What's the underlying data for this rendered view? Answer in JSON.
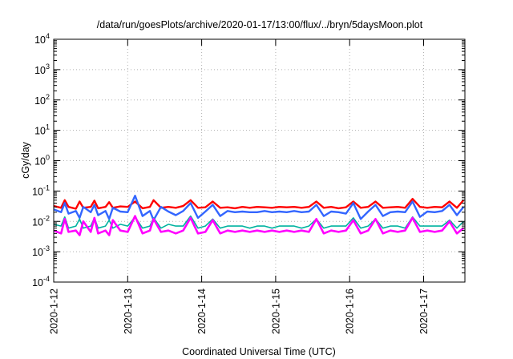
{
  "chart_data": {
    "type": "line",
    "title": "/data/run/goesPlots/archive/2020-01-17/13:00/flux/../bryn/5daysMoon.plot",
    "xlabel": "Coordinated Universal Time (UTC)",
    "ylabel": "cGy/day",
    "yscale": "log",
    "ylim": [
      0.0001,
      10000
    ],
    "xlim": [
      "2020-01-12 00:00",
      "2020-01-17 13:00"
    ],
    "grid": true,
    "y_ticks": [
      {
        "mantissa": "10",
        "exp": "-4"
      },
      {
        "mantissa": "10",
        "exp": "-3"
      },
      {
        "mantissa": "10",
        "exp": "-2"
      },
      {
        "mantissa": "10",
        "exp": "-1"
      },
      {
        "mantissa": "10",
        "exp": "0"
      },
      {
        "mantissa": "10",
        "exp": "1"
      },
      {
        "mantissa": "10",
        "exp": "2"
      },
      {
        "mantissa": "10",
        "exp": "3"
      },
      {
        "mantissa": "10",
        "exp": "4"
      }
    ],
    "x_ticks": [
      "2020-1-12",
      "2020-1-13",
      "2020-1-14",
      "2020-1-15",
      "2020-1-16",
      "2020-1-17"
    ],
    "series_style": [
      {
        "color": "#ff0000",
        "width": 2.4
      },
      {
        "color": "#3366ff",
        "width": 2.4
      },
      {
        "color": "#00b3a0",
        "width": 1.6
      },
      {
        "color": "#ff00ff",
        "width": 2.6
      }
    ],
    "series": [
      {
        "values": [
          [
            0.0,
            0.032
          ],
          [
            0.1,
            0.028
          ],
          [
            0.15,
            0.05
          ],
          [
            0.2,
            0.03
          ],
          [
            0.3,
            0.026
          ],
          [
            0.35,
            0.045
          ],
          [
            0.4,
            0.028
          ],
          [
            0.5,
            0.03
          ],
          [
            0.55,
            0.048
          ],
          [
            0.6,
            0.027
          ],
          [
            0.7,
            0.03
          ],
          [
            0.75,
            0.043
          ],
          [
            0.8,
            0.028
          ],
          [
            0.9,
            0.031
          ],
          [
            1.0,
            0.03
          ],
          [
            1.1,
            0.045
          ],
          [
            1.2,
            0.027
          ],
          [
            1.3,
            0.03
          ],
          [
            1.35,
            0.05
          ],
          [
            1.45,
            0.028
          ],
          [
            1.55,
            0.03
          ],
          [
            1.65,
            0.028
          ],
          [
            1.75,
            0.032
          ],
          [
            1.85,
            0.05
          ],
          [
            1.95,
            0.028
          ],
          [
            2.05,
            0.029
          ],
          [
            2.15,
            0.045
          ],
          [
            2.25,
            0.028
          ],
          [
            2.35,
            0.029
          ],
          [
            2.45,
            0.027
          ],
          [
            2.55,
            0.03
          ],
          [
            2.65,
            0.028
          ],
          [
            2.75,
            0.03
          ],
          [
            2.85,
            0.029
          ],
          [
            2.95,
            0.028
          ],
          [
            3.05,
            0.03
          ],
          [
            3.15,
            0.029
          ],
          [
            3.25,
            0.03
          ],
          [
            3.35,
            0.028
          ],
          [
            3.45,
            0.03
          ],
          [
            3.55,
            0.045
          ],
          [
            3.65,
            0.028
          ],
          [
            3.75,
            0.03
          ],
          [
            3.85,
            0.027
          ],
          [
            3.95,
            0.029
          ],
          [
            4.05,
            0.045
          ],
          [
            4.15,
            0.028
          ],
          [
            4.25,
            0.03
          ],
          [
            4.35,
            0.045
          ],
          [
            4.45,
            0.028
          ],
          [
            4.55,
            0.029
          ],
          [
            4.65,
            0.03
          ],
          [
            4.75,
            0.028
          ],
          [
            4.85,
            0.055
          ],
          [
            4.95,
            0.03
          ],
          [
            5.05,
            0.028
          ],
          [
            5.15,
            0.03
          ],
          [
            5.25,
            0.029
          ],
          [
            5.35,
            0.045
          ],
          [
            5.45,
            0.028
          ],
          [
            5.54,
            0.05
          ]
        ]
      },
      {
        "values": [
          [
            0.0,
            0.025
          ],
          [
            0.1,
            0.02
          ],
          [
            0.15,
            0.04
          ],
          [
            0.2,
            0.018
          ],
          [
            0.3,
            0.022
          ],
          [
            0.35,
            0.013
          ],
          [
            0.4,
            0.03
          ],
          [
            0.5,
            0.02
          ],
          [
            0.55,
            0.035
          ],
          [
            0.6,
            0.016
          ],
          [
            0.7,
            0.022
          ],
          [
            0.75,
            0.012
          ],
          [
            0.8,
            0.028
          ],
          [
            0.9,
            0.021
          ],
          [
            1.0,
            0.02
          ],
          [
            1.1,
            0.07
          ],
          [
            1.2,
            0.015
          ],
          [
            1.3,
            0.022
          ],
          [
            1.35,
            0.011
          ],
          [
            1.45,
            0.03
          ],
          [
            1.55,
            0.021
          ],
          [
            1.65,
            0.016
          ],
          [
            1.75,
            0.022
          ],
          [
            1.85,
            0.04
          ],
          [
            1.95,
            0.013
          ],
          [
            2.05,
            0.021
          ],
          [
            2.15,
            0.035
          ],
          [
            2.25,
            0.015
          ],
          [
            2.35,
            0.022
          ],
          [
            2.45,
            0.02
          ],
          [
            2.55,
            0.021
          ],
          [
            2.65,
            0.02
          ],
          [
            2.75,
            0.02
          ],
          [
            2.85,
            0.022
          ],
          [
            2.95,
            0.02
          ],
          [
            3.05,
            0.021
          ],
          [
            3.15,
            0.02
          ],
          [
            3.25,
            0.022
          ],
          [
            3.35,
            0.02
          ],
          [
            3.45,
            0.021
          ],
          [
            3.55,
            0.035
          ],
          [
            3.65,
            0.015
          ],
          [
            3.75,
            0.021
          ],
          [
            3.85,
            0.02
          ],
          [
            3.95,
            0.018
          ],
          [
            4.05,
            0.04
          ],
          [
            4.15,
            0.012
          ],
          [
            4.25,
            0.021
          ],
          [
            4.35,
            0.035
          ],
          [
            4.45,
            0.015
          ],
          [
            4.55,
            0.02
          ],
          [
            4.65,
            0.021
          ],
          [
            4.75,
            0.02
          ],
          [
            4.85,
            0.045
          ],
          [
            4.95,
            0.014
          ],
          [
            5.05,
            0.021
          ],
          [
            5.15,
            0.02
          ],
          [
            5.25,
            0.022
          ],
          [
            5.35,
            0.035
          ],
          [
            5.45,
            0.016
          ],
          [
            5.54,
            0.03
          ]
        ]
      },
      {
        "values": [
          [
            0.0,
            0.008
          ],
          [
            0.1,
            0.007
          ],
          [
            0.15,
            0.014
          ],
          [
            0.2,
            0.006
          ],
          [
            0.3,
            0.007
          ],
          [
            0.35,
            0.012
          ],
          [
            0.4,
            0.006
          ],
          [
            0.5,
            0.007
          ],
          [
            0.55,
            0.013
          ],
          [
            0.6,
            0.006
          ],
          [
            0.7,
            0.007
          ],
          [
            0.75,
            0.011
          ],
          [
            0.8,
            0.006
          ],
          [
            0.9,
            0.008
          ],
          [
            1.0,
            0.007
          ],
          [
            1.1,
            0.014
          ],
          [
            1.2,
            0.006
          ],
          [
            1.3,
            0.007
          ],
          [
            1.35,
            0.013
          ],
          [
            1.45,
            0.006
          ],
          [
            1.55,
            0.008
          ],
          [
            1.65,
            0.007
          ],
          [
            1.75,
            0.007
          ],
          [
            1.85,
            0.015
          ],
          [
            1.95,
            0.006
          ],
          [
            2.05,
            0.007
          ],
          [
            2.15,
            0.012
          ],
          [
            2.25,
            0.006
          ],
          [
            2.35,
            0.007
          ],
          [
            2.45,
            0.007
          ],
          [
            2.55,
            0.007
          ],
          [
            2.65,
            0.006
          ],
          [
            2.75,
            0.007
          ],
          [
            2.85,
            0.007
          ],
          [
            2.95,
            0.006
          ],
          [
            3.05,
            0.007
          ],
          [
            3.15,
            0.007
          ],
          [
            3.25,
            0.007
          ],
          [
            3.35,
            0.006
          ],
          [
            3.45,
            0.007
          ],
          [
            3.55,
            0.012
          ],
          [
            3.65,
            0.006
          ],
          [
            3.75,
            0.007
          ],
          [
            3.85,
            0.007
          ],
          [
            3.95,
            0.007
          ],
          [
            4.05,
            0.013
          ],
          [
            4.15,
            0.006
          ],
          [
            4.25,
            0.007
          ],
          [
            4.35,
            0.012
          ],
          [
            4.45,
            0.006
          ],
          [
            4.55,
            0.007
          ],
          [
            4.65,
            0.007
          ],
          [
            4.75,
            0.006
          ],
          [
            4.85,
            0.014
          ],
          [
            4.95,
            0.007
          ],
          [
            5.05,
            0.007
          ],
          [
            5.15,
            0.007
          ],
          [
            5.25,
            0.007
          ],
          [
            5.35,
            0.011
          ],
          [
            5.45,
            0.006
          ],
          [
            5.54,
            0.01
          ]
        ]
      },
      {
        "values": [
          [
            0.0,
            0.005
          ],
          [
            0.1,
            0.004
          ],
          [
            0.15,
            0.012
          ],
          [
            0.2,
            0.0045
          ],
          [
            0.3,
            0.005
          ],
          [
            0.35,
            0.0035
          ],
          [
            0.4,
            0.01
          ],
          [
            0.5,
            0.0045
          ],
          [
            0.55,
            0.013
          ],
          [
            0.6,
            0.004
          ],
          [
            0.7,
            0.005
          ],
          [
            0.75,
            0.0035
          ],
          [
            0.8,
            0.011
          ],
          [
            0.9,
            0.005
          ],
          [
            1.0,
            0.0045
          ],
          [
            1.1,
            0.015
          ],
          [
            1.2,
            0.004
          ],
          [
            1.3,
            0.005
          ],
          [
            1.35,
            0.012
          ],
          [
            1.45,
            0.0045
          ],
          [
            1.55,
            0.005
          ],
          [
            1.65,
            0.004
          ],
          [
            1.75,
            0.005
          ],
          [
            1.85,
            0.013
          ],
          [
            1.95,
            0.004
          ],
          [
            2.05,
            0.0045
          ],
          [
            2.15,
            0.011
          ],
          [
            2.25,
            0.004
          ],
          [
            2.35,
            0.005
          ],
          [
            2.45,
            0.0045
          ],
          [
            2.55,
            0.005
          ],
          [
            2.65,
            0.0045
          ],
          [
            2.75,
            0.005
          ],
          [
            2.85,
            0.0045
          ],
          [
            2.95,
            0.005
          ],
          [
            3.05,
            0.0045
          ],
          [
            3.15,
            0.005
          ],
          [
            3.25,
            0.0045
          ],
          [
            3.35,
            0.005
          ],
          [
            3.45,
            0.0045
          ],
          [
            3.55,
            0.012
          ],
          [
            3.65,
            0.004
          ],
          [
            3.75,
            0.005
          ],
          [
            3.85,
            0.0045
          ],
          [
            3.95,
            0.005
          ],
          [
            4.05,
            0.011
          ],
          [
            4.15,
            0.004
          ],
          [
            4.25,
            0.005
          ],
          [
            4.35,
            0.012
          ],
          [
            4.45,
            0.004
          ],
          [
            4.55,
            0.005
          ],
          [
            4.65,
            0.0045
          ],
          [
            4.75,
            0.005
          ],
          [
            4.85,
            0.013
          ],
          [
            4.95,
            0.0045
          ],
          [
            5.05,
            0.005
          ],
          [
            5.15,
            0.0045
          ],
          [
            5.25,
            0.005
          ],
          [
            5.35,
            0.01
          ],
          [
            5.45,
            0.004
          ],
          [
            5.54,
            0.006
          ]
        ]
      }
    ]
  }
}
